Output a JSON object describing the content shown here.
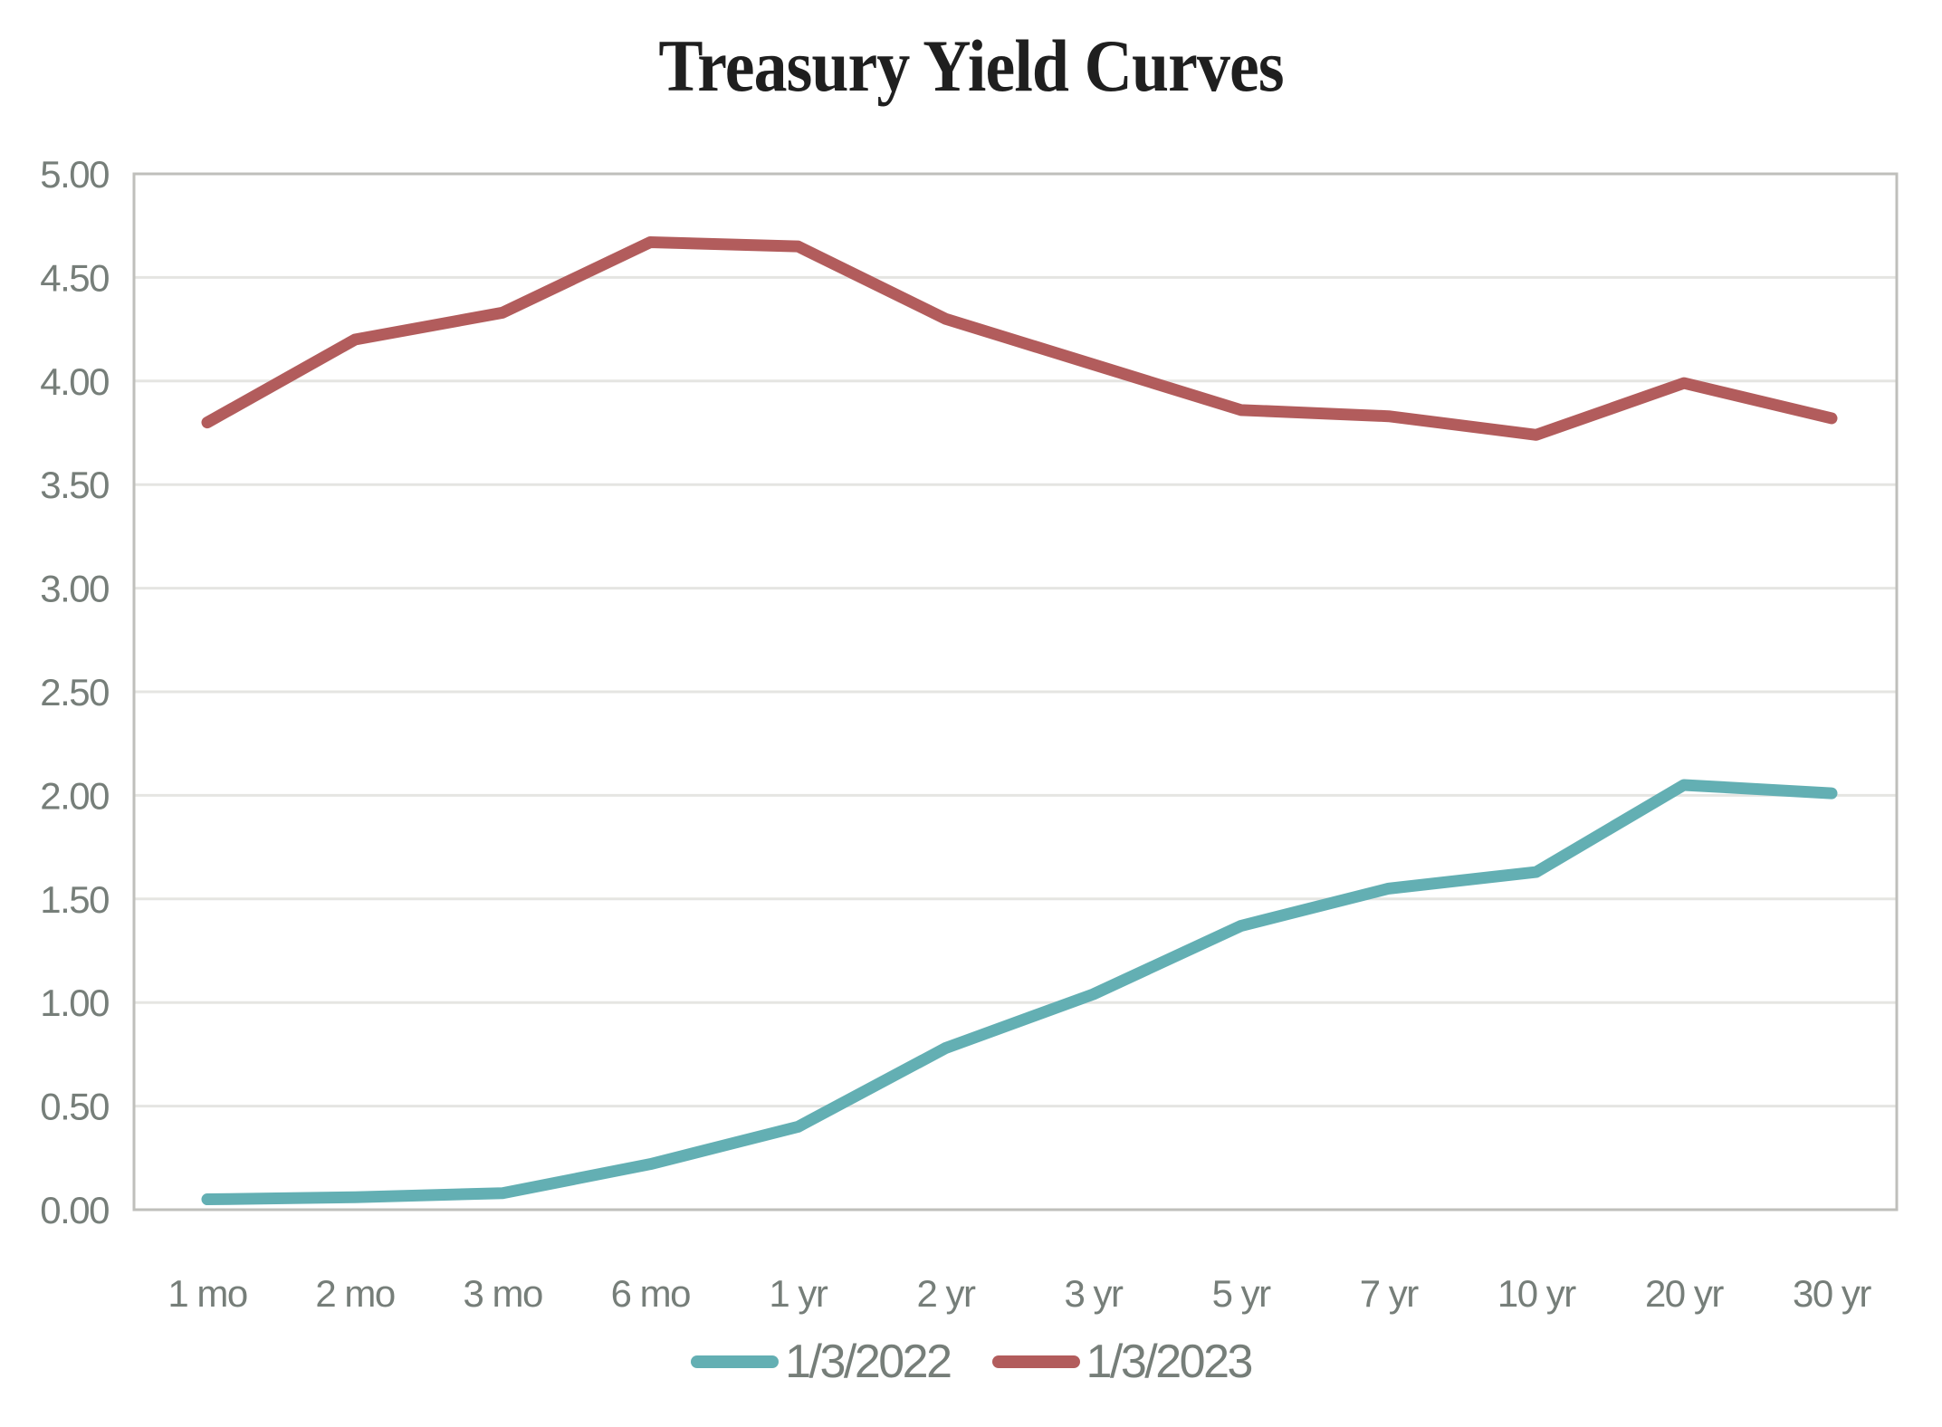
{
  "chart_data": {
    "type": "line",
    "title": "Treasury Yield Curves",
    "categories": [
      "1 mo",
      "2 mo",
      "3 mo",
      "6 mo",
      "1 yr",
      "2 yr",
      "3 yr",
      "5 yr",
      "7 yr",
      "10 yr",
      "20 yr",
      "30 yr"
    ],
    "series": [
      {
        "name": "1/3/2022",
        "color": "#63AFB3",
        "values": [
          0.05,
          0.06,
          0.08,
          0.22,
          0.4,
          0.78,
          1.04,
          1.37,
          1.55,
          1.63,
          2.05,
          2.01
        ]
      },
      {
        "name": "1/3/2023",
        "color": "#B25C5C",
        "values": [
          3.8,
          4.2,
          4.33,
          4.67,
          4.65,
          4.3,
          4.08,
          3.86,
          3.83,
          3.74,
          3.99,
          3.82
        ]
      }
    ],
    "xlabel": "",
    "ylabel": "",
    "ylim": [
      0,
      5
    ],
    "y_tick_step": 0.5,
    "y_ticks": [
      "0.00",
      "0.50",
      "1.00",
      "1.50",
      "2.00",
      "2.50",
      "3.00",
      "3.50",
      "4.00",
      "4.50",
      "5.00"
    ],
    "grid": true,
    "legend_position": "bottom",
    "colors": {
      "axis_text": "#767E79",
      "gridline": "#E5E5E2",
      "plot_border": "#BFBFBB",
      "title": "#1F1F1F",
      "background": "#FFFFFF"
    }
  }
}
